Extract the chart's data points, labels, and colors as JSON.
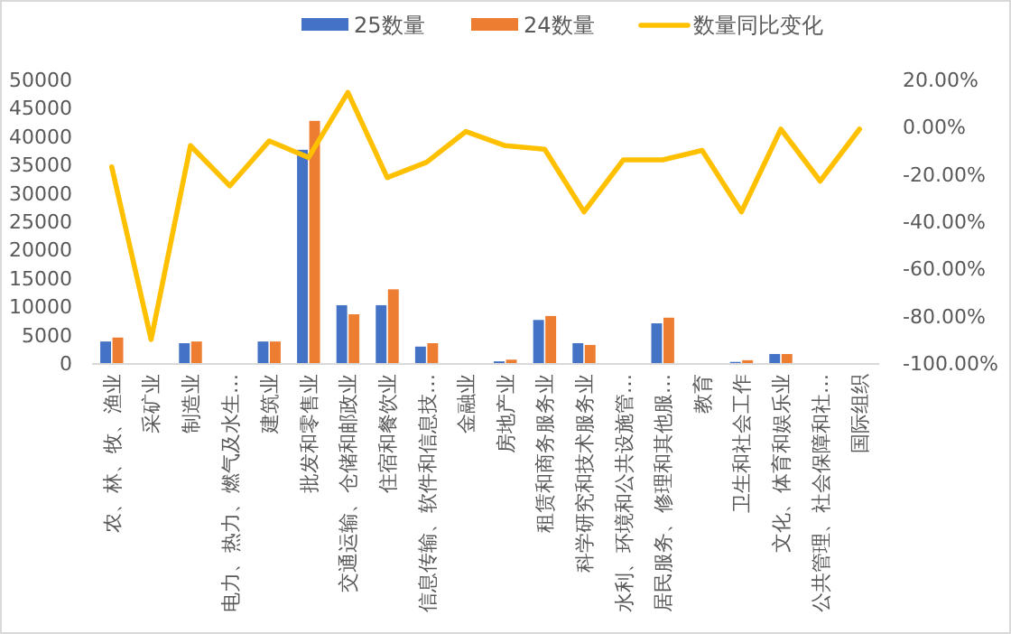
{
  "chart_data": {
    "type": "bar",
    "categories": [
      "农、林、牧、渔业",
      "采矿业",
      "制造业",
      "电力、热力、燃气及水生…",
      "建筑业",
      "批发和零售业",
      "交通运输、仓储和邮政业",
      "住宿和餐饮业",
      "信息传输、软件和信息技…",
      "金融业",
      "房地产业",
      "租赁和商务服务业",
      "科学研究和技术服务业",
      "水利、环境和公共设施管…",
      "居民服务、修理和其他服…",
      "教育",
      "卫生和社会工作",
      "文化、体育和娱乐业",
      "公共管理、社会保障和社…",
      "国际组织"
    ],
    "series": [
      {
        "name": "25数量",
        "color": "#4472c4",
        "values": [
          3800,
          0,
          3500,
          0,
          3800,
          37600,
          10200,
          10200,
          2900,
          0,
          300,
          7600,
          3500,
          0,
          7000,
          0,
          200,
          1600,
          0,
          0
        ]
      },
      {
        "name": "24数量",
        "color": "#ed7d31",
        "values": [
          4500,
          0,
          3800,
          0,
          3800,
          42700,
          8600,
          13000,
          3500,
          0,
          600,
          8300,
          3200,
          0,
          8000,
          0,
          500,
          1600,
          0,
          0
        ]
      },
      {
        "name": "数量同比变化",
        "color": "#ffc000",
        "type": "line",
        "axis": "y2",
        "values": [
          -17,
          -90,
          -8,
          -25,
          -6,
          -13,
          14.5,
          -21.5,
          -15,
          -2,
          -8,
          -9.5,
          -36,
          -14,
          -14,
          -10,
          -36,
          -1,
          -23,
          -1
        ]
      }
    ],
    "ylim": [
      0,
      50000
    ],
    "yticks": [
      0,
      5000,
      10000,
      15000,
      20000,
      25000,
      30000,
      35000,
      40000,
      45000,
      50000
    ],
    "y2lim": [
      -100,
      20
    ],
    "y2ticks": [
      {
        "value": -100,
        "label": "-100.00%"
      },
      {
        "value": -80,
        "label": "-80.00%"
      },
      {
        "value": -60,
        "label": "-60.00%"
      },
      {
        "value": -40,
        "label": "-40.00%"
      },
      {
        "value": -20,
        "label": "-20.00%"
      },
      {
        "value": 0,
        "label": "0.00%"
      },
      {
        "value": 20,
        "label": "20.00%"
      }
    ],
    "legend": "top",
    "marker": "none"
  }
}
